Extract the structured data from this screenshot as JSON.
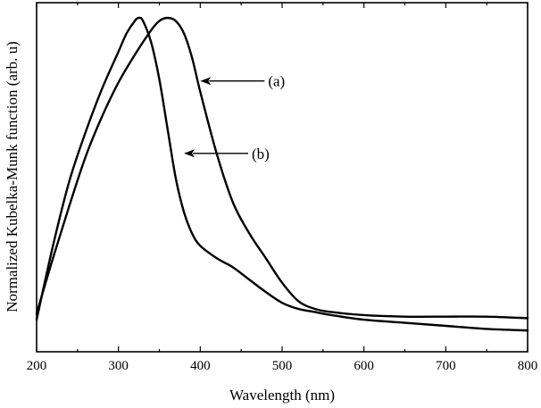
{
  "chart_data": {
    "type": "line",
    "title": "",
    "xlabel": "Wavelength (nm)",
    "ylabel": "Normalized Kubelka-Munk function (arb. u)",
    "xlim": [
      200,
      800
    ],
    "ylim": [
      0,
      1.05
    ],
    "xticks": [
      200,
      300,
      400,
      500,
      600,
      700,
      800
    ],
    "xtick_labels": [
      "200",
      "300",
      "400",
      "500",
      "600",
      "700",
      "800"
    ],
    "minor_xtick_step": 50,
    "yticks_shown": false,
    "grid": false,
    "series": [
      {
        "id": "a",
        "x": [
          200,
          220,
          240,
          260,
          280,
          300,
          320,
          340,
          350,
          360,
          370,
          380,
          390,
          400,
          420,
          440,
          460,
          480,
          500,
          520,
          540,
          560,
          600,
          650,
          700,
          750,
          800
        ],
        "y": [
          0.04,
          0.22,
          0.39,
          0.55,
          0.68,
          0.79,
          0.88,
          0.96,
          0.99,
          1.0,
          0.99,
          0.95,
          0.87,
          0.76,
          0.56,
          0.4,
          0.3,
          0.22,
          0.14,
          0.08,
          0.055,
          0.045,
          0.035,
          0.03,
          0.03,
          0.03,
          0.025
        ]
      },
      {
        "id": "b",
        "x": [
          200,
          220,
          240,
          260,
          280,
          300,
          310,
          320,
          325,
          330,
          340,
          350,
          360,
          370,
          380,
          390,
          400,
          420,
          440,
          460,
          480,
          500,
          520,
          540,
          560,
          600,
          650,
          700,
          750,
          800
        ],
        "y": [
          0.02,
          0.26,
          0.47,
          0.63,
          0.77,
          0.89,
          0.95,
          0.99,
          1.0,
          0.99,
          0.92,
          0.8,
          0.64,
          0.48,
          0.37,
          0.3,
          0.26,
          0.22,
          0.19,
          0.15,
          0.11,
          0.075,
          0.055,
          0.045,
          0.035,
          0.02,
          0.01,
          0.0,
          -0.01,
          -0.015
        ]
      }
    ],
    "annotations": [
      {
        "text": "(a)",
        "series": "a",
        "arrow_to": [
          400,
          0.795
        ]
      },
      {
        "text": "(b)",
        "series": "b",
        "arrow_to": [
          380,
          0.56
        ]
      }
    ],
    "legend": "none"
  }
}
